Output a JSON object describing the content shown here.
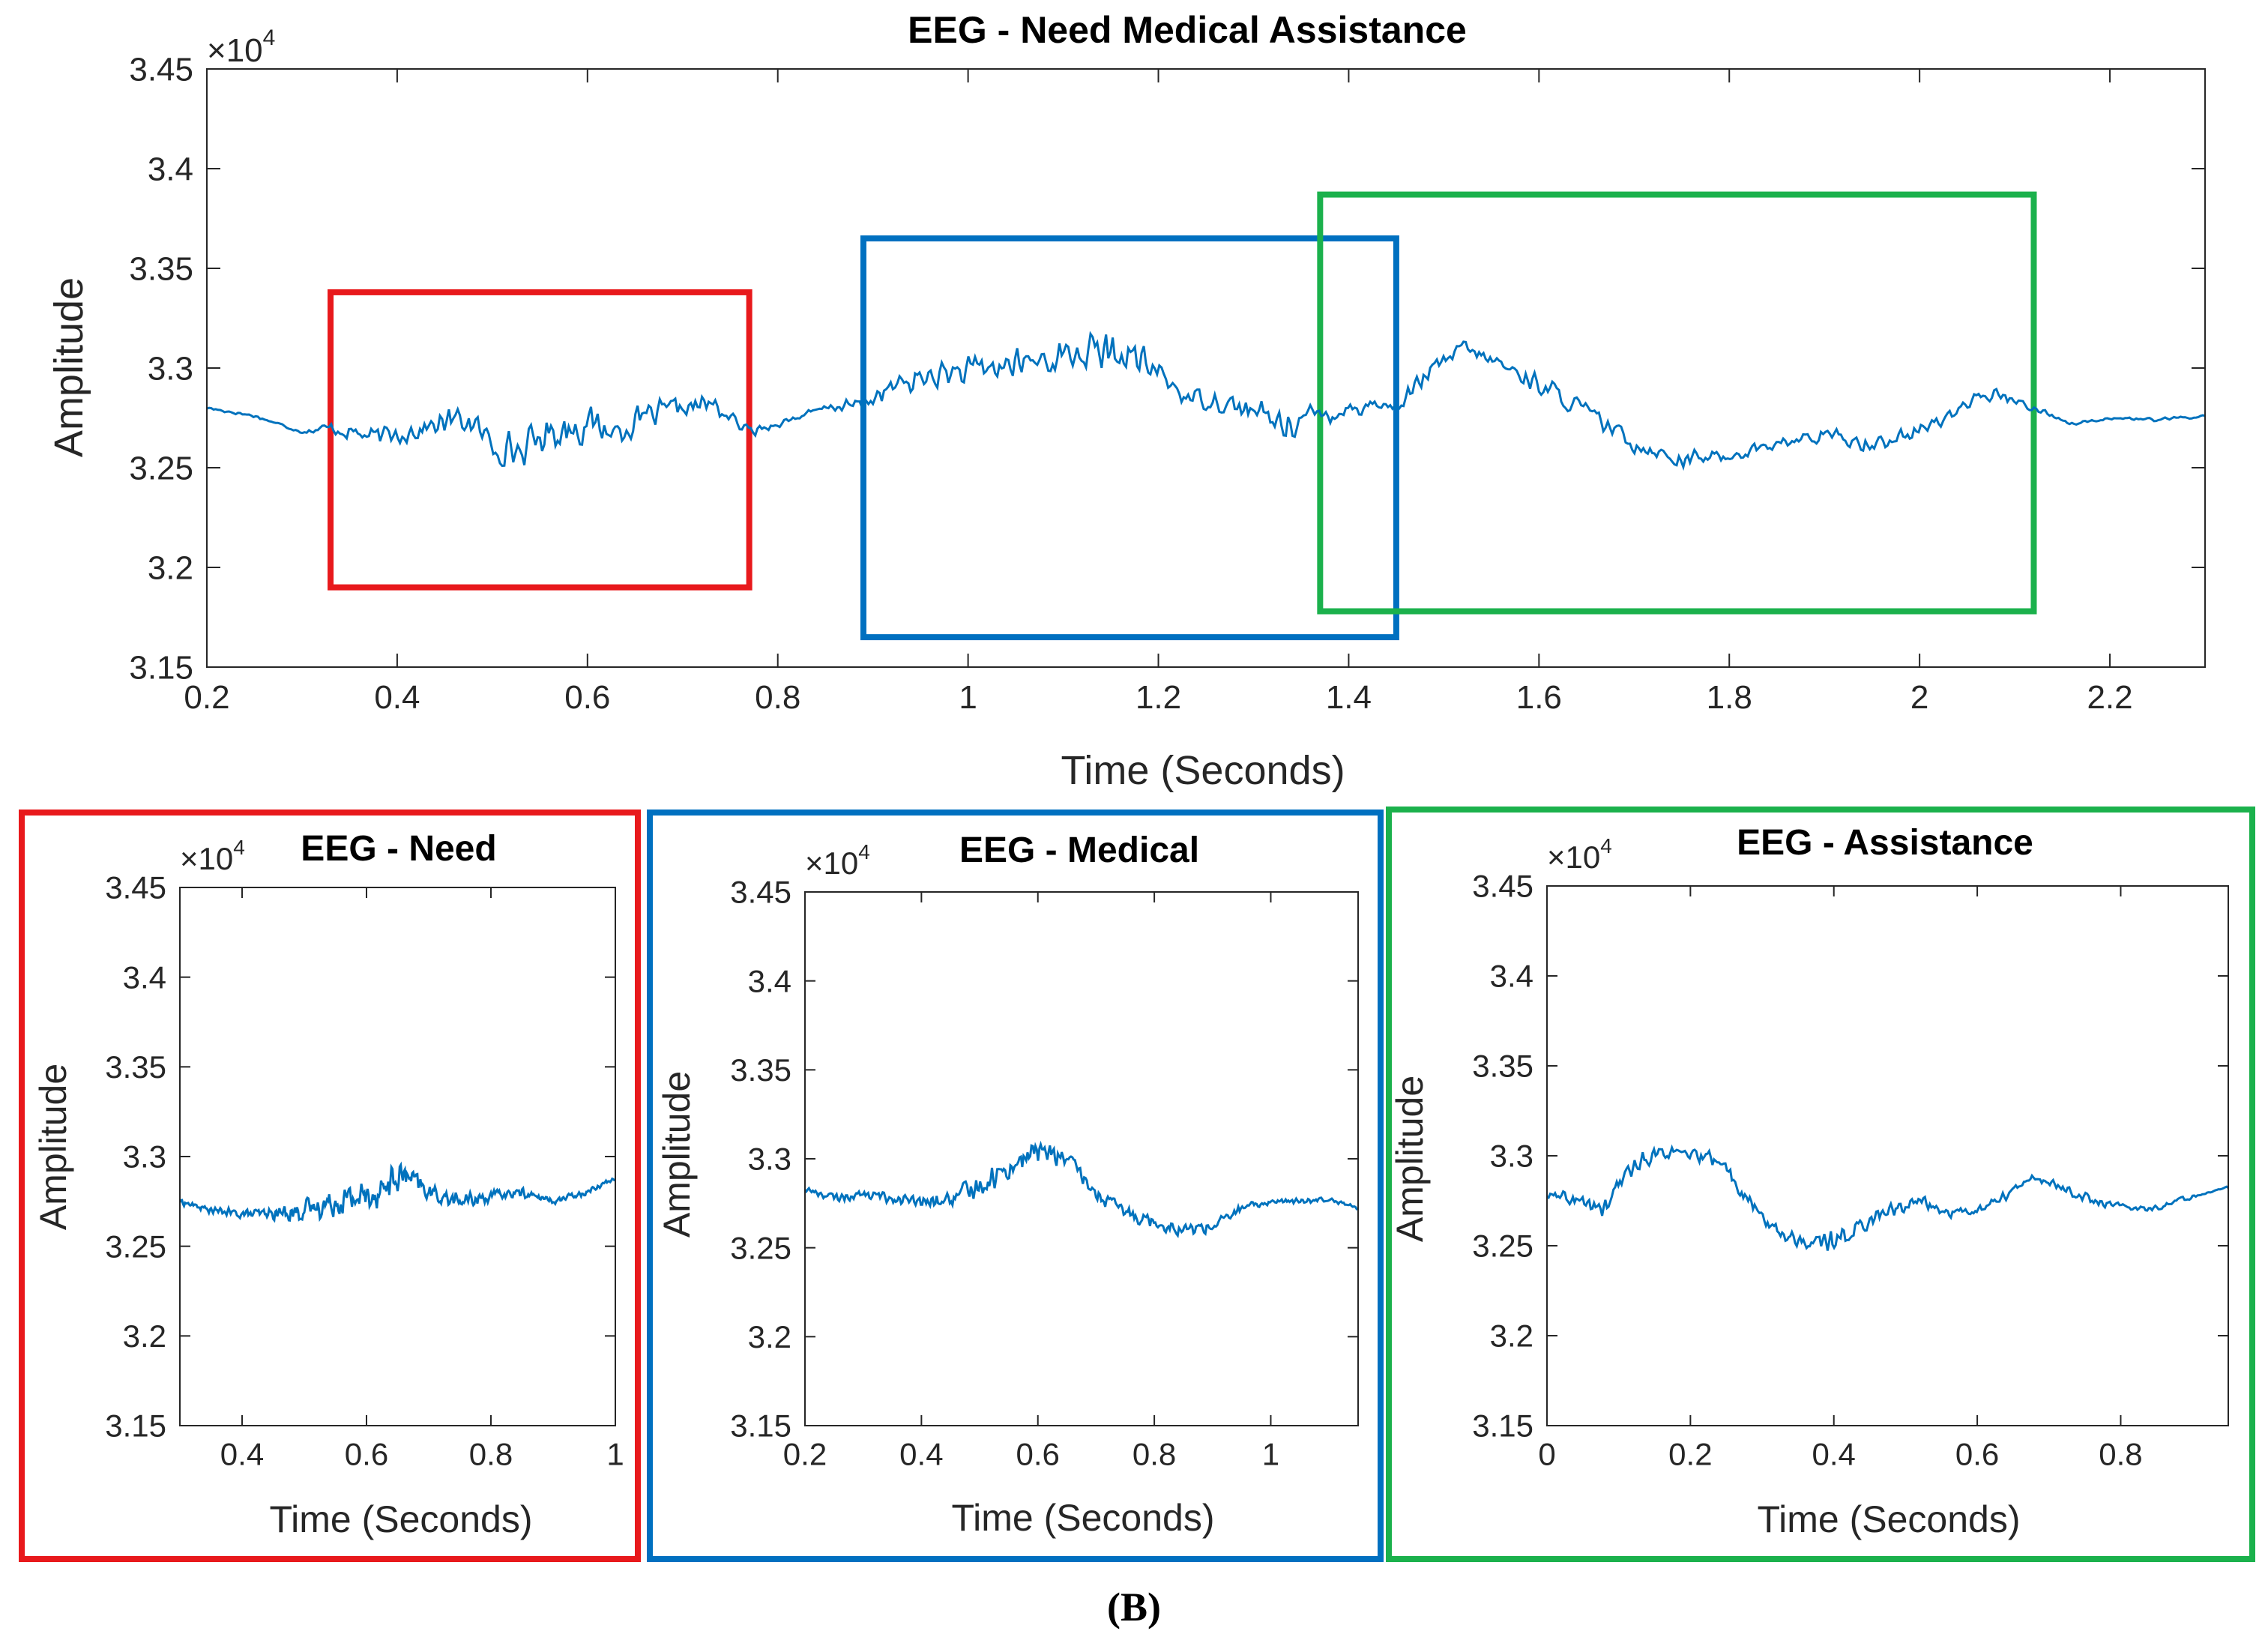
{
  "figure_label": "(B)",
  "colors": {
    "signal": "#0072BD",
    "red": "#E8191C",
    "blue": "#0070C0",
    "green": "#1BB14C",
    "axis": "#262626"
  },
  "chart_data": [
    {
      "id": "main",
      "type": "line",
      "title": "EEG - Need Medical Assistance",
      "xlabel": "Time (Seconds)",
      "ylabel": "Amplitude",
      "exponent_label": "×10",
      "exponent_power": "4",
      "xlim": [
        0.2,
        2.3
      ],
      "ylim": [
        3.15,
        3.45
      ],
      "xticks": [
        0.2,
        0.4,
        0.6,
        0.8,
        1,
        1.2,
        1.4,
        1.6,
        1.8,
        2,
        2.2
      ],
      "yticks": [
        3.15,
        3.2,
        3.25,
        3.3,
        3.35,
        3.4,
        3.45
      ],
      "grid": false,
      "highlight_regions": [
        {
          "color": "red",
          "x": [
            0.33,
            0.77
          ],
          "y": [
            3.19,
            3.338
          ]
        },
        {
          "color": "blue",
          "x": [
            0.89,
            1.45
          ],
          "y": [
            3.165,
            3.365
          ]
        },
        {
          "color": "green",
          "x": [
            1.37,
            2.12
          ],
          "y": [
            3.178,
            3.387
          ]
        }
      ],
      "signal": {
        "x": [
          0.2,
          0.25,
          0.3,
          0.33,
          0.38,
          0.43,
          0.47,
          0.5,
          0.53,
          0.56,
          0.6,
          0.63,
          0.66,
          0.7,
          0.73,
          0.77,
          0.8,
          0.85,
          0.89,
          0.92,
          0.96,
          1.0,
          1.05,
          1.1,
          1.13,
          1.17,
          1.2,
          1.23,
          1.26,
          1.3,
          1.33,
          1.36,
          1.4,
          1.43,
          1.45,
          1.48,
          1.52,
          1.55,
          1.6,
          1.65,
          1.7,
          1.75,
          1.8,
          1.85,
          1.9,
          1.95,
          2.0,
          2.05,
          2.08,
          2.12,
          2.16,
          2.2,
          2.25,
          2.3
        ],
        "y": [
          3.28,
          3.276,
          3.268,
          3.27,
          3.265,
          3.27,
          3.275,
          3.262,
          3.258,
          3.268,
          3.272,
          3.268,
          3.275,
          3.28,
          3.282,
          3.268,
          3.272,
          3.28,
          3.282,
          3.29,
          3.296,
          3.298,
          3.302,
          3.306,
          3.308,
          3.306,
          3.298,
          3.285,
          3.284,
          3.278,
          3.272,
          3.275,
          3.28,
          3.282,
          3.28,
          3.296,
          3.31,
          3.304,
          3.292,
          3.278,
          3.262,
          3.254,
          3.256,
          3.262,
          3.266,
          3.262,
          3.268,
          3.282,
          3.287,
          3.28,
          3.272,
          3.275,
          3.274,
          3.276
        ],
        "noise": [
          0.001,
          0.001,
          0.001,
          0.004,
          0.006,
          0.007,
          0.009,
          0.01,
          0.011,
          0.011,
          0.011,
          0.009,
          0.008,
          0.007,
          0.006,
          0.003,
          0.002,
          0.002,
          0.005,
          0.007,
          0.008,
          0.009,
          0.009,
          0.01,
          0.011,
          0.01,
          0.008,
          0.006,
          0.006,
          0.008,
          0.009,
          0.008,
          0.006,
          0.005,
          0.004,
          0.005,
          0.005,
          0.005,
          0.006,
          0.006,
          0.005,
          0.005,
          0.004,
          0.004,
          0.005,
          0.005,
          0.005,
          0.004,
          0.004,
          0.002,
          0.001,
          0.001,
          0.001,
          0.001
        ]
      }
    },
    {
      "id": "need",
      "type": "line",
      "title": "EEG - Need",
      "xlabel": "Time (Seconds)",
      "ylabel": "Amplitude",
      "exponent_label": "×10",
      "exponent_power": "4",
      "frame_color": "red",
      "xlim": [
        0.3,
        1.0
      ],
      "ylim": [
        3.15,
        3.45
      ],
      "xticks": [
        0.4,
        0.6,
        0.8,
        1
      ],
      "yticks": [
        3.15,
        3.2,
        3.25,
        3.3,
        3.35,
        3.4,
        3.45
      ],
      "signal": {
        "x": [
          0.3,
          0.35,
          0.4,
          0.45,
          0.5,
          0.55,
          0.6,
          0.63,
          0.66,
          0.7,
          0.75,
          0.8,
          0.85,
          0.9,
          0.95,
          1.0
        ],
        "y": [
          3.275,
          3.27,
          3.268,
          3.268,
          3.27,
          3.275,
          3.278,
          3.283,
          3.29,
          3.28,
          3.275,
          3.278,
          3.28,
          3.275,
          3.28,
          3.288
        ],
        "noise": [
          0.002,
          0.002,
          0.003,
          0.004,
          0.007,
          0.009,
          0.011,
          0.011,
          0.009,
          0.006,
          0.005,
          0.004,
          0.003,
          0.002,
          0.002,
          0.001
        ]
      }
    },
    {
      "id": "medical",
      "type": "line",
      "title": "EEG - Medical",
      "xlabel": "Time (Seconds)",
      "ylabel": "Amplitude",
      "exponent_label": "×10",
      "exponent_power": "4",
      "frame_color": "blue",
      "xlim": [
        0.2,
        1.15
      ],
      "ylim": [
        3.15,
        3.45
      ],
      "xticks": [
        0.2,
        0.4,
        0.6,
        0.8,
        1
      ],
      "yticks": [
        3.15,
        3.2,
        3.25,
        3.3,
        3.35,
        3.4,
        3.45
      ],
      "signal": {
        "x": [
          0.2,
          0.25,
          0.3,
          0.35,
          0.4,
          0.45,
          0.5,
          0.55,
          0.6,
          0.65,
          0.7,
          0.75,
          0.8,
          0.85,
          0.9,
          0.95,
          1.0,
          1.05,
          1.1,
          1.15
        ],
        "y": [
          3.283,
          3.278,
          3.28,
          3.278,
          3.275,
          3.277,
          3.285,
          3.295,
          3.305,
          3.3,
          3.28,
          3.27,
          3.265,
          3.26,
          3.262,
          3.272,
          3.276,
          3.276,
          3.278,
          3.272
        ],
        "noise": [
          0.002,
          0.003,
          0.003,
          0.004,
          0.004,
          0.006,
          0.007,
          0.008,
          0.008,
          0.006,
          0.005,
          0.005,
          0.005,
          0.005,
          0.004,
          0.003,
          0.002,
          0.002,
          0.002,
          0.001
        ]
      }
    },
    {
      "id": "assistance",
      "type": "line",
      "title": "EEG - Assistance",
      "xlabel": "Time (Seconds)",
      "ylabel": "Amplitude",
      "exponent_label": "×10",
      "exponent_power": "4",
      "frame_color": "green",
      "xlim": [
        0,
        0.95
      ],
      "ylim": [
        3.15,
        3.45
      ],
      "xticks": [
        0,
        0.2,
        0.4,
        0.6,
        0.8
      ],
      "yticks": [
        3.15,
        3.2,
        3.25,
        3.3,
        3.35,
        3.4,
        3.45
      ],
      "signal": {
        "x": [
          0,
          0.04,
          0.08,
          0.12,
          0.16,
          0.2,
          0.24,
          0.28,
          0.32,
          0.36,
          0.4,
          0.44,
          0.48,
          0.52,
          0.56,
          0.6,
          0.64,
          0.68,
          0.72,
          0.76,
          0.8,
          0.84,
          0.88,
          0.92,
          0.95
        ],
        "y": [
          3.278,
          3.275,
          3.27,
          3.295,
          3.302,
          3.3,
          3.298,
          3.275,
          3.258,
          3.252,
          3.252,
          3.262,
          3.27,
          3.275,
          3.268,
          3.27,
          3.278,
          3.288,
          3.282,
          3.275,
          3.272,
          3.27,
          3.275,
          3.28,
          3.282
        ],
        "noise": [
          0.003,
          0.005,
          0.008,
          0.007,
          0.004,
          0.004,
          0.005,
          0.005,
          0.005,
          0.006,
          0.007,
          0.005,
          0.005,
          0.004,
          0.003,
          0.003,
          0.003,
          0.003,
          0.003,
          0.003,
          0.002,
          0.002,
          0.002,
          0.001,
          0.001
        ]
      }
    }
  ]
}
